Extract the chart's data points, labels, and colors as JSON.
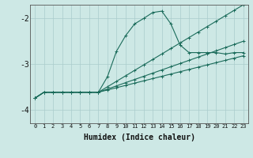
{
  "xlabel": "Humidex (Indice chaleur)",
  "ylabel": "",
  "background_color": "#cde8e5",
  "grid_color": "#aacccc",
  "line_color": "#1a6b5a",
  "xlim": [
    -0.5,
    23.5
  ],
  "ylim": [
    -4.3,
    -1.7
  ],
  "yticks": [
    -4,
    -3,
    -2
  ],
  "xticks": [
    0,
    1,
    2,
    3,
    4,
    5,
    6,
    7,
    8,
    9,
    10,
    11,
    12,
    13,
    14,
    15,
    16,
    17,
    18,
    19,
    20,
    21,
    22,
    23
  ],
  "series1_x": [
    0,
    1,
    2,
    3,
    4,
    5,
    6,
    7,
    8,
    9,
    10,
    11,
    12,
    13,
    14,
    15,
    16,
    17,
    18,
    19,
    20,
    21,
    22,
    23
  ],
  "series1_y": [
    -3.75,
    -3.62,
    -3.62,
    -3.62,
    -3.62,
    -3.62,
    -3.62,
    -3.62,
    -3.28,
    -2.72,
    -2.38,
    -2.12,
    -2.0,
    -1.87,
    -1.84,
    -2.12,
    -2.58,
    -2.75,
    -2.75,
    -2.75,
    -2.75,
    -2.78,
    -2.75,
    -2.75
  ],
  "series2_x": [
    0,
    1,
    2,
    3,
    4,
    5,
    6,
    7,
    8,
    9,
    10,
    11,
    12,
    13,
    14,
    15,
    16,
    17,
    18,
    19,
    20,
    21,
    22,
    23
  ],
  "series2_y": [
    -3.75,
    -3.62,
    -3.62,
    -3.62,
    -3.62,
    -3.62,
    -3.62,
    -3.62,
    -3.57,
    -3.52,
    -3.47,
    -3.42,
    -3.37,
    -3.32,
    -3.27,
    -3.22,
    -3.17,
    -3.12,
    -3.07,
    -3.02,
    -2.97,
    -2.92,
    -2.87,
    -2.82
  ],
  "series3_x": [
    0,
    1,
    2,
    3,
    4,
    5,
    6,
    7,
    8,
    9,
    10,
    11,
    12,
    13,
    14,
    15,
    16,
    17,
    18,
    19,
    20,
    21,
    22,
    23
  ],
  "series3_y": [
    -3.75,
    -3.62,
    -3.62,
    -3.62,
    -3.62,
    -3.62,
    -3.62,
    -3.62,
    -3.55,
    -3.48,
    -3.41,
    -3.34,
    -3.27,
    -3.2,
    -3.13,
    -3.06,
    -2.99,
    -2.92,
    -2.85,
    -2.78,
    -2.71,
    -2.64,
    -2.57,
    -2.5
  ],
  "series4_x": [
    0,
    1,
    2,
    3,
    4,
    5,
    6,
    7,
    8,
    9,
    10,
    11,
    12,
    13,
    14,
    15,
    16,
    17,
    18,
    19,
    20,
    21,
    22,
    23
  ],
  "series4_y": [
    -3.75,
    -3.62,
    -3.62,
    -3.62,
    -3.62,
    -3.62,
    -3.62,
    -3.62,
    -3.5,
    -3.38,
    -3.26,
    -3.14,
    -3.02,
    -2.9,
    -2.78,
    -2.66,
    -2.54,
    -2.42,
    -2.3,
    -2.18,
    -2.06,
    -1.94,
    -1.82,
    -1.7
  ]
}
